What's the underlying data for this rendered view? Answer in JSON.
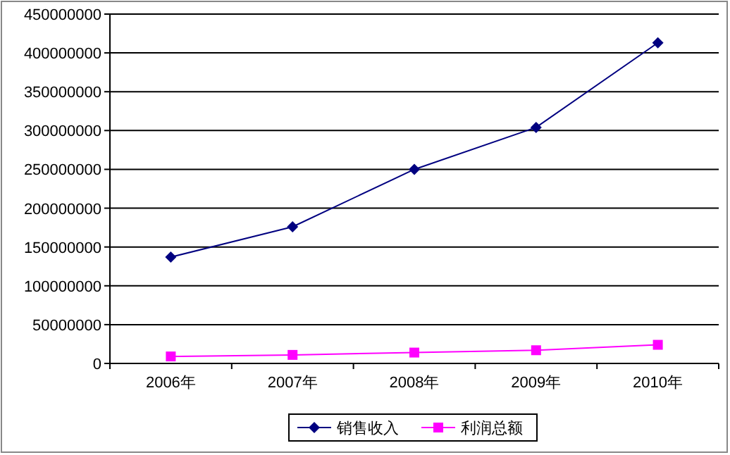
{
  "chart_data": {
    "type": "line",
    "categories": [
      "2006年",
      "2007年",
      "2008年",
      "2009年",
      "2010年"
    ],
    "series": [
      {
        "name": "销售收入",
        "color": "#000080",
        "marker": "diamond",
        "values": [
          137000000,
          176000000,
          250000000,
          304000000,
          413000000
        ]
      },
      {
        "name": "利润总额",
        "color": "#ff00ff",
        "marker": "square",
        "values": [
          9000000,
          11000000,
          14000000,
          17000000,
          24000000
        ]
      }
    ],
    "ylim": [
      0,
      450000000
    ],
    "yticks": [
      0,
      50000000,
      100000000,
      150000000,
      200000000,
      250000000,
      300000000,
      350000000,
      400000000,
      450000000
    ],
    "grid": "y",
    "legend": "bottom"
  }
}
